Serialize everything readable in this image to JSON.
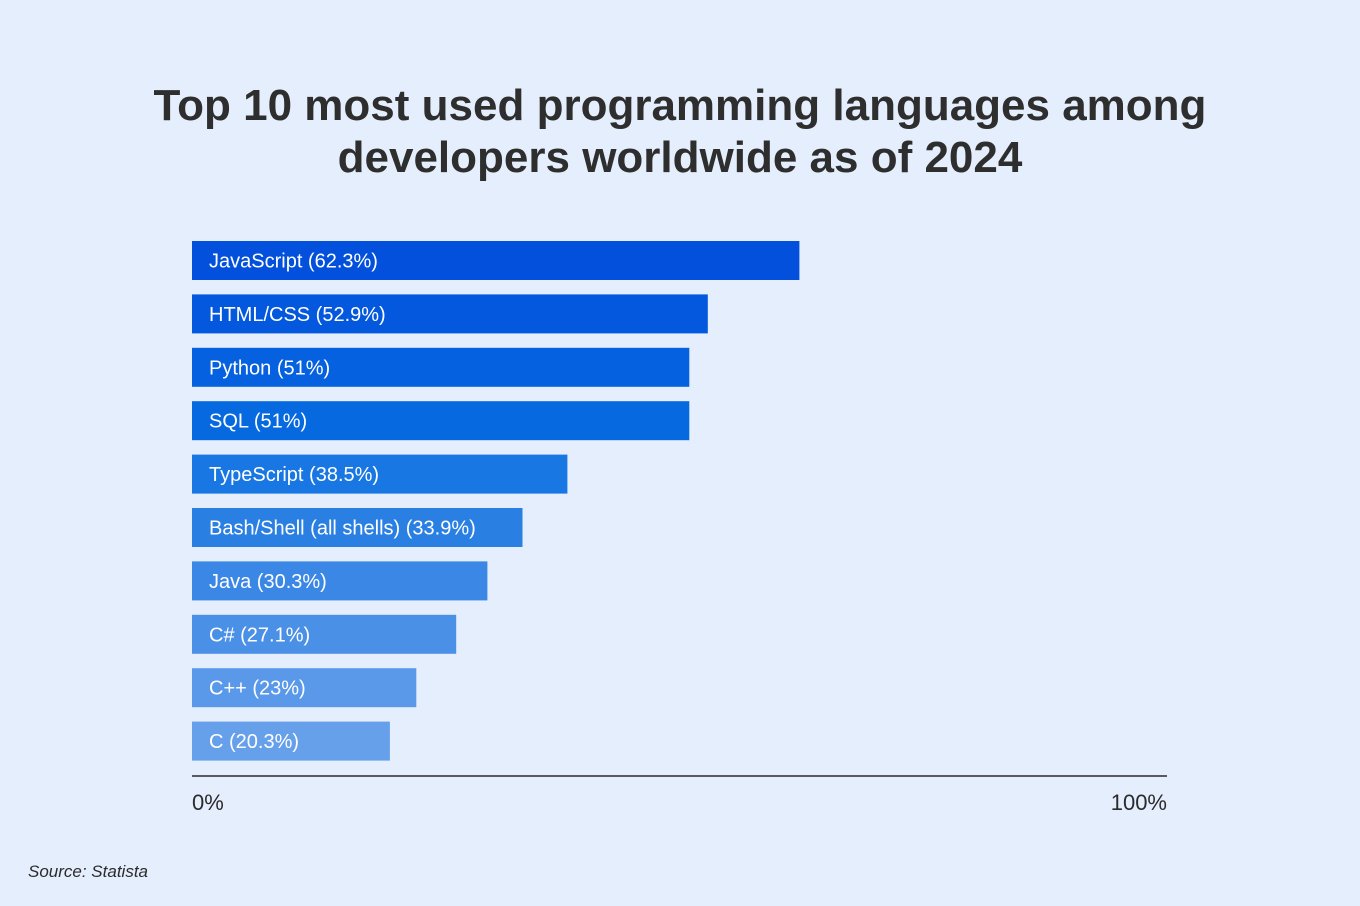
{
  "chart_data": {
    "type": "bar",
    "orientation": "horizontal",
    "title": "Top 10 most used programming languages among\ndevelopers worldwide as of 2024",
    "categories": [
      "JavaScript",
      "HTML/CSS",
      "Python",
      "SQL",
      "TypeScript",
      "Bash/Shell (all shells)",
      "Java",
      "C#",
      "C++",
      "C"
    ],
    "values": [
      62.3,
      52.9,
      51,
      51,
      38.5,
      33.9,
      30.3,
      27.1,
      23,
      20.3
    ],
    "labels": [
      "JavaScript (62.3%)",
      "HTML/CSS (52.9%)",
      "Python (51%)",
      "SQL (51%)",
      "TypeScript (38.5%)",
      "Bash/Shell (all shells) (33.9%)",
      "Java (30.3%)",
      "C# (27.1%)",
      "C++ (23%)",
      "C (20.3%)"
    ],
    "colors": [
      "#0250dc",
      "#0358dd",
      "#0561df",
      "#0769e0",
      "#1877e2",
      "#2a7fe3",
      "#3b87e5",
      "#4b90e7",
      "#5a98e9",
      "#66a0ea"
    ],
    "xlim": [
      0,
      100
    ],
    "x_tick_labels": [
      "0%",
      "100%"
    ],
    "grid": false,
    "legend": "none"
  },
  "source": "Source: Statista"
}
